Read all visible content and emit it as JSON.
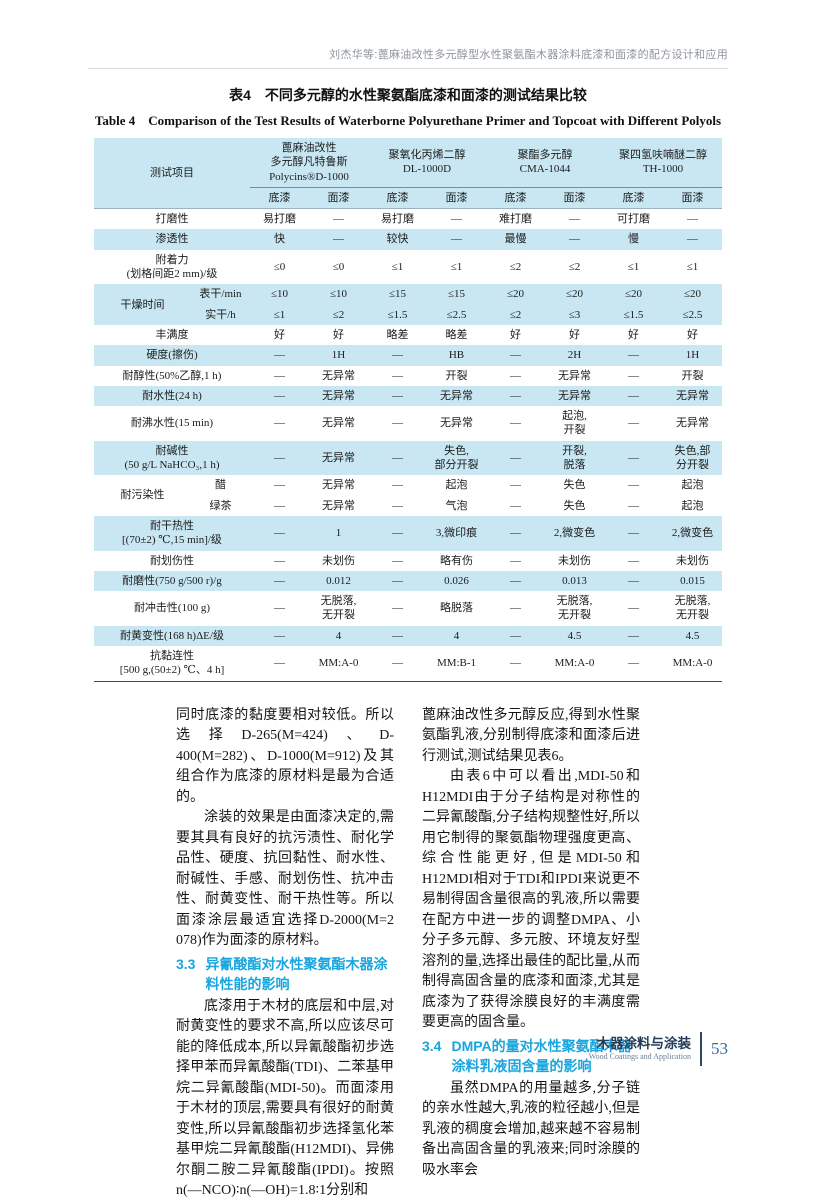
{
  "accent_colors": {
    "table_band_blue": "#c8e7f3",
    "section_heading_blue": "#19a5dd",
    "footer_navy": "#253d5c",
    "page_number_blue": "#2f6da8"
  },
  "running_head": "刘杰华等:蓖麻油改性多元醇型水性聚氨酯木器涂料底漆和面漆的配方设计和应用",
  "table": {
    "title_cn": "表4　不同多元醇的水性聚氨酯底漆和面漆的测试结果比较",
    "title_en": "Table 4　Comparison of the Test Results of Waterborne Polyurethane Primer and Topcoat with Different Polyols",
    "item_header": "测试项目",
    "groups": [
      {
        "name": "蓖麻油改性\n多元醇凡特鲁斯\nPolycins®D-1000"
      },
      {
        "name": "聚氧化丙烯二醇\nDL-1000D"
      },
      {
        "name": "聚酯多元醇\nCMA-1044"
      },
      {
        "name": "聚四氢呋喃醚二醇\nTH-1000"
      }
    ],
    "sub_headers": [
      "底漆",
      "面漆"
    ],
    "rows": [
      {
        "label": "打磨性",
        "shade": false,
        "values": [
          "易打磨",
          "—",
          "易打磨",
          "—",
          "难打磨",
          "—",
          "可打磨",
          "—"
        ]
      },
      {
        "label": "渗透性",
        "shade": true,
        "values": [
          "快",
          "—",
          "较快",
          "—",
          "最慢",
          "—",
          "慢",
          "—"
        ]
      },
      {
        "label": "附着力\n(划格间距2 mm)/级",
        "shade": false,
        "values": [
          "≤0",
          "≤0",
          "≤1",
          "≤1",
          "≤2",
          "≤2",
          "≤1",
          "≤1"
        ]
      },
      {
        "label": "干燥时间",
        "shade": true,
        "sub": [
          "表干/min",
          "实干/h"
        ],
        "values2": [
          [
            "≤10",
            "≤10",
            "≤15",
            "≤15",
            "≤20",
            "≤20",
            "≤20",
            "≤20"
          ],
          [
            "≤1",
            "≤2",
            "≤1.5",
            "≤2.5",
            "≤2",
            "≤3",
            "≤1.5",
            "≤2.5"
          ]
        ]
      },
      {
        "label": "丰满度",
        "shade": false,
        "values": [
          "好",
          "好",
          "略差",
          "略差",
          "好",
          "好",
          "好",
          "好"
        ]
      },
      {
        "label": "硬度(擦伤)",
        "shade": true,
        "values": [
          "—",
          "1H",
          "—",
          "HB",
          "—",
          "2H",
          "—",
          "1H"
        ]
      },
      {
        "label": "耐醇性(50%乙醇,1 h)",
        "shade": false,
        "values": [
          "—",
          "无异常",
          "—",
          "开裂",
          "—",
          "无异常",
          "—",
          "开裂"
        ]
      },
      {
        "label": "耐水性(24 h)",
        "shade": true,
        "values": [
          "—",
          "无异常",
          "—",
          "无异常",
          "—",
          "无异常",
          "—",
          "无异常"
        ]
      },
      {
        "label": "耐沸水性(15 min)",
        "shade": false,
        "values": [
          "—",
          "无异常",
          "—",
          "无异常",
          "—",
          "起泡,\n开裂",
          "—",
          "无异常"
        ]
      },
      {
        "label": "耐碱性\n(50 g/L NaHCO₃,1 h)",
        "shade": true,
        "values": [
          "—",
          "无异常",
          "—",
          "失色,\n部分开裂",
          "—",
          "开裂,\n脱落",
          "—",
          "失色,部\n分开裂"
        ]
      },
      {
        "label": "耐污染性",
        "shade": false,
        "sub": [
          "醋",
          "绿茶"
        ],
        "values2": [
          [
            "—",
            "无异常",
            "—",
            "起泡",
            "—",
            "失色",
            "—",
            "起泡"
          ],
          [
            "—",
            "无异常",
            "—",
            "气泡",
            "—",
            "失色",
            "—",
            "起泡"
          ]
        ]
      },
      {
        "label": "耐干热性\n[(70±2) ℃,15 min]/级",
        "shade": true,
        "values": [
          "—",
          "1",
          "—",
          "3,微印痕",
          "—",
          "2,微变色",
          "—",
          "2,微变色"
        ]
      },
      {
        "label": "耐划伤性",
        "shade": false,
        "values": [
          "—",
          "未划伤",
          "—",
          "略有伤",
          "—",
          "未划伤",
          "—",
          "未划伤"
        ]
      },
      {
        "label": "耐磨性(750 g/500 r)/g",
        "shade": true,
        "values": [
          "—",
          "0.012",
          "—",
          "0.026",
          "—",
          "0.013",
          "—",
          "0.015"
        ]
      },
      {
        "label": "耐冲击性(100 g)",
        "shade": false,
        "values": [
          "—",
          "无脱落,\n无开裂",
          "—",
          "略脱落",
          "—",
          "无脱落,\n无开裂",
          "—",
          "无脱落,\n无开裂"
        ]
      },
      {
        "label": "耐黄变性(168 h)ΔE/级",
        "shade": true,
        "values": [
          "—",
          "4",
          "—",
          "4",
          "—",
          "4.5",
          "—",
          "4.5"
        ]
      },
      {
        "label": "抗黏连性\n[500 g,(50±2) ℃、4 h]",
        "shade": false,
        "values": [
          "—",
          "MM:A-0",
          "—",
          "MM:B-1",
          "—",
          "MM:A-0",
          "—",
          "MM:A-0"
        ]
      }
    ]
  },
  "left_column": {
    "blocks": [
      {
        "kind": "para",
        "indent": false,
        "text": "同时底漆的黏度要相对较低。所以选择D-265(M=424)、D-400(M=282)、D-1000(M=912)及其组合作为底漆的原材料是最为合适的。"
      },
      {
        "kind": "para",
        "indent": true,
        "text": "涂装的效果是由面漆决定的,需要其具有良好的抗污渍性、耐化学品性、硬度、抗回黏性、耐水性、耐碱性、手感、耐划伤性、抗冲击性、耐黄变性、耐干热性等。所以面漆涂层最适宜选择D-2000(M=2 078)作为面漆的原材料。"
      },
      {
        "kind": "heading",
        "num": "3.3",
        "title": "异氰酸酯对水性聚氨酯木器涂料性能的影响"
      },
      {
        "kind": "para",
        "indent": true,
        "text": "底漆用于木材的底层和中层,对耐黄变性的要求不高,所以应该尽可能的降低成本,所以异氰酸酯初步选择甲苯而异氰酸酯(TDI)、二苯基甲烷二异氰酸酯(MDI-50)。而面漆用于木材的顶层,需要具有很好的耐黄变性,所以异氰酸酯初步选择氢化苯基甲烷二异氰酸酯(H12MDI)、异佛尔酮二胺二异氰酸酯(IPDI)。按照n(—NCO)∶n(—OH)=1.8∶1分别和"
      }
    ]
  },
  "right_column": {
    "blocks": [
      {
        "kind": "para",
        "indent": false,
        "text": "蓖麻油改性多元醇反应,得到水性聚氨酯乳液,分别制得底漆和面漆后进行测试,测试结果见表6。"
      },
      {
        "kind": "para",
        "indent": true,
        "text": "由表6中可以看出,MDI-50和H12MDI由于分子结构是对称性的二异氰酸酯,分子结构规整性好,所以用它制得的聚氨酯物理强度更高、综合性能更好,但是MDI-50和H12MDI相对于TDI和IPDI来说更不易制得固含量很高的乳液,所以需要在配方中进一步的调整DMPA、小分子多元醇、多元胺、环境友好型溶剂的量,选择出最佳的配比量,从而制得高固含量的底漆和面漆,尤其是底漆为了获得涂膜良好的丰满度需要更高的固含量。"
      },
      {
        "kind": "heading",
        "num": "3.4",
        "title": "DMPA的量对水性聚氨酯木器涂料乳液固含量的影响"
      },
      {
        "kind": "para",
        "indent": true,
        "text": "虽然DMPA的用量越多,分子链的亲水性越大,乳液的粒径越小,但是乳液的稠度会增加,越来越不容易制备出高固含量的乳液来;同时涂膜的吸水率会"
      }
    ]
  },
  "footer": {
    "journal_cn": "木器涂料与涂装",
    "journal_en": "Wood Coatings and Application",
    "page_number": "53"
  }
}
